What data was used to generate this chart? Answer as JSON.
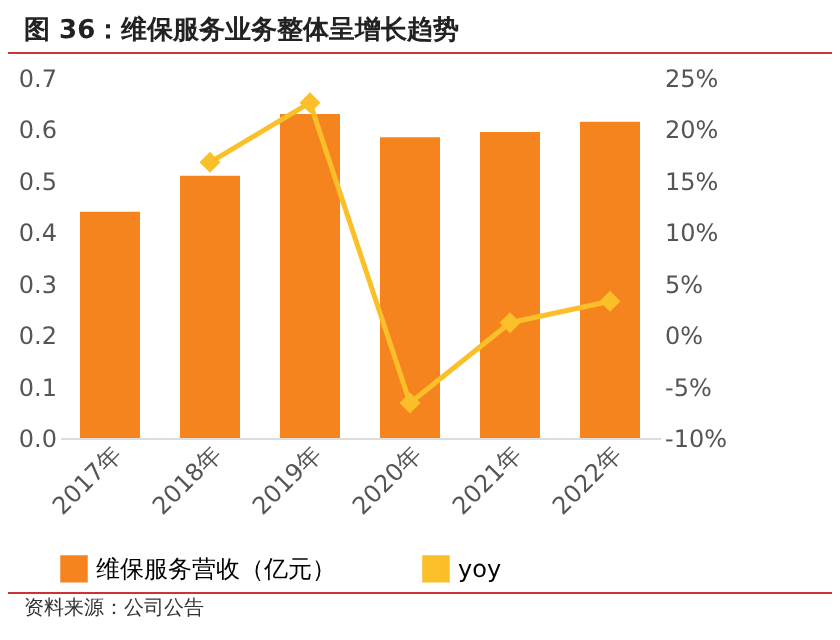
{
  "chart_data": {
    "type": "bar",
    "title": "图 36：维保服务业务整体呈增长趋势",
    "categories": [
      "2017年",
      "2018年",
      "2019年",
      "2020年",
      "2021年",
      "2022年"
    ],
    "series": [
      {
        "name": "维保服务营收（亿元）",
        "color": "#f5841f",
        "values": [
          0.44,
          0.51,
          0.63,
          0.585,
          0.595,
          0.615
        ]
      },
      {
        "name": "yoy",
        "type": "line",
        "axis": "y2",
        "color": "#fbbf2a",
        "marker": "diamond",
        "values": [
          null,
          16.8,
          22.6,
          -6.6,
          1.2,
          3.3
        ]
      }
    ],
    "ylim": [
      0,
      0.7
    ],
    "yticks": [
      {
        "value": 0,
        "label": "0.0"
      },
      0.1,
      0.2,
      0.3,
      0.4,
      0.5,
      0.6,
      0.7
    ],
    "y2lim": [
      -10,
      25
    ],
    "y2ticks": [
      {
        "value": -10,
        "label": "-10%"
      },
      {
        "value": -5,
        "label": "-5%"
      },
      {
        "value": 0,
        "label": "0%"
      },
      {
        "value": 5,
        "label": "5%"
      },
      {
        "value": 10,
        "label": "10%"
      },
      {
        "value": 15,
        "label": "15%"
      },
      {
        "value": 20,
        "label": "20%"
      },
      {
        "value": 25,
        "label": "25%"
      }
    ],
    "legend": "bottom",
    "grid": false,
    "annotations": [
      "资料来源：公司公告"
    ]
  }
}
